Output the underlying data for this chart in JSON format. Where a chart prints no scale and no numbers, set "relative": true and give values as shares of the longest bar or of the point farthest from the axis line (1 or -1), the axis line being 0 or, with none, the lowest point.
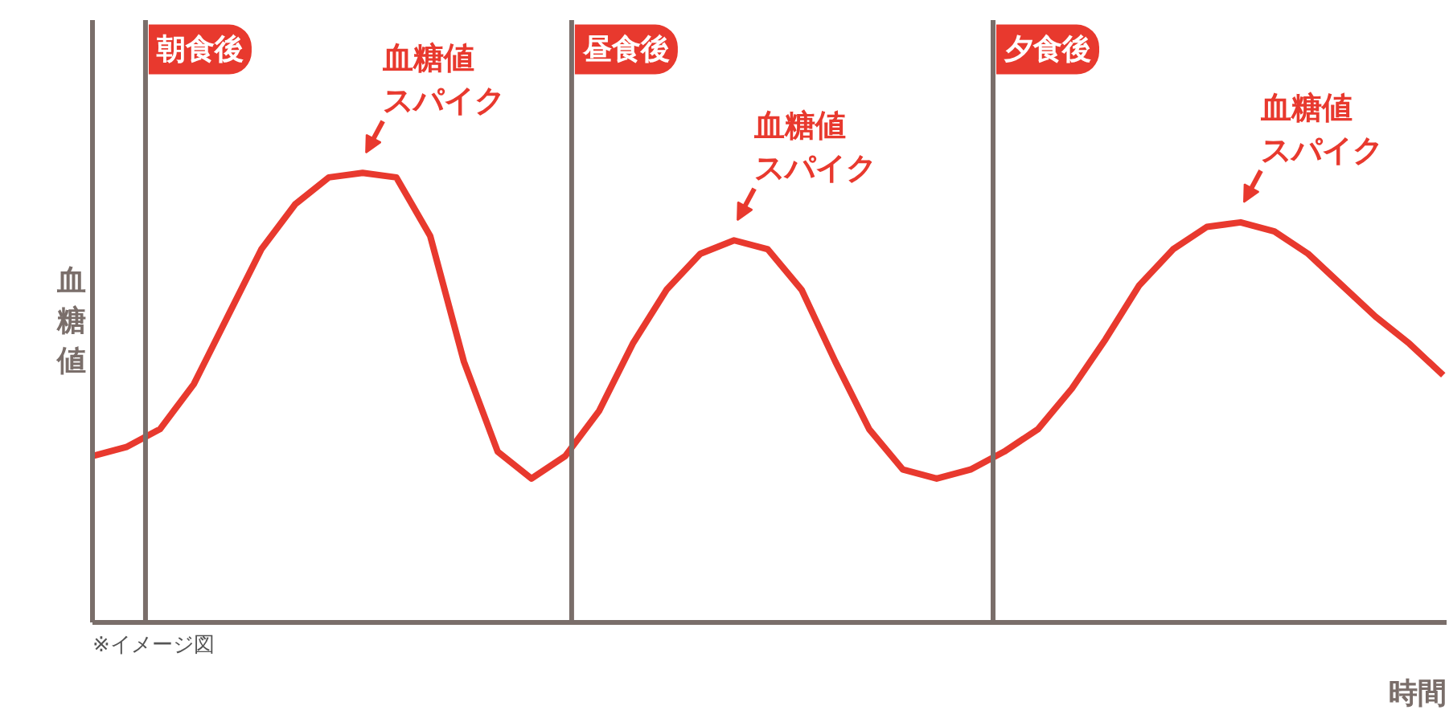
{
  "chart_data": {
    "type": "line",
    "relative": true,
    "xlabel": "時間",
    "ylabel": "血糖値",
    "categories": [
      null,
      null,
      null,
      null,
      null,
      null,
      null,
      null,
      null,
      null,
      null,
      null,
      null,
      null,
      null,
      null,
      null,
      null,
      null,
      null,
      null,
      null,
      null,
      null,
      null,
      null,
      null,
      null,
      null,
      null,
      null,
      null,
      null,
      null,
      null,
      null,
      null,
      null,
      null,
      null,
      null
    ],
    "marker": "none",
    "line_style": "solid",
    "series": [
      {
        "color": "#e8392e",
        "values": [
          0.37,
          0.39,
          0.43,
          0.53,
          0.68,
          0.83,
          0.93,
          0.99,
          1,
          0.99,
          0.86,
          0.58,
          0.38,
          0.32,
          0.37,
          0.47,
          0.62,
          0.74,
          0.82,
          0.85,
          0.83,
          0.74,
          0.58,
          0.43,
          0.34,
          0.32,
          0.34,
          0.38,
          0.43,
          0.52,
          0.63,
          0.75,
          0.83,
          0.88,
          0.89,
          0.87,
          0.82,
          0.75,
          0.68,
          0.62,
          0.55
        ]
      }
    ],
    "annotations": [
      "朝食後",
      "昼食後",
      "夕食後",
      "血糖値スパイク",
      "血糖値スパイク",
      "血糖値スパイク",
      "※イメージ図"
    ]
  }
}
